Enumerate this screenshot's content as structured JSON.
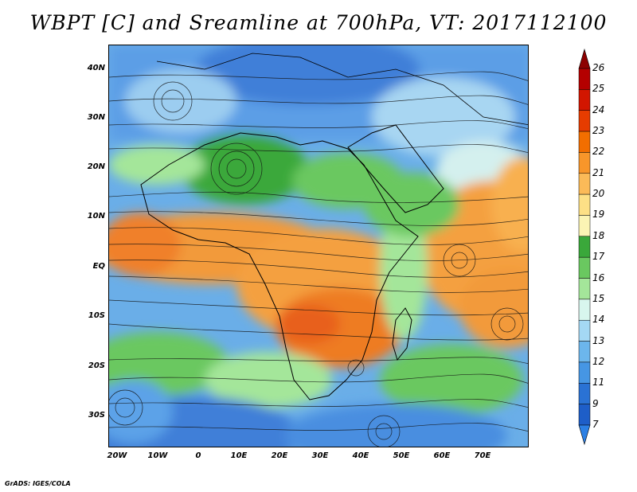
{
  "title": "WBPT [C] and Sreamline at 700hPa, VT: 2017112100",
  "footer": "GrADS: IGES/COLA",
  "lat_labels": [
    "40N",
    "30N",
    "20N",
    "10N",
    "EQ",
    "10S",
    "20S",
    "30S"
  ],
  "lon_labels": [
    "20W",
    "10W",
    "0",
    "10E",
    "20E",
    "30E",
    "40E",
    "50E",
    "60E",
    "70E"
  ],
  "colorbar": {
    "labels": [
      "26",
      "25",
      "24",
      "23",
      "22",
      "21",
      "20",
      "19",
      "18",
      "17",
      "16",
      "15",
      "14",
      "13",
      "12",
      "11",
      "9",
      "7"
    ],
    "colors": [
      "#b40000",
      "#d21600",
      "#e63c00",
      "#f26e00",
      "#f8962a",
      "#fbba58",
      "#fde086",
      "#fbf4b4",
      "#3aa83a",
      "#6ac860",
      "#a4e69a",
      "#d8f6ee",
      "#a4d8f4",
      "#6cb6ec",
      "#4696e4",
      "#2a72d4",
      "#1e5ec8"
    ],
    "arrow_top_color": "#8c0000",
    "arrow_bottom_color": "#2c80e4"
  }
}
